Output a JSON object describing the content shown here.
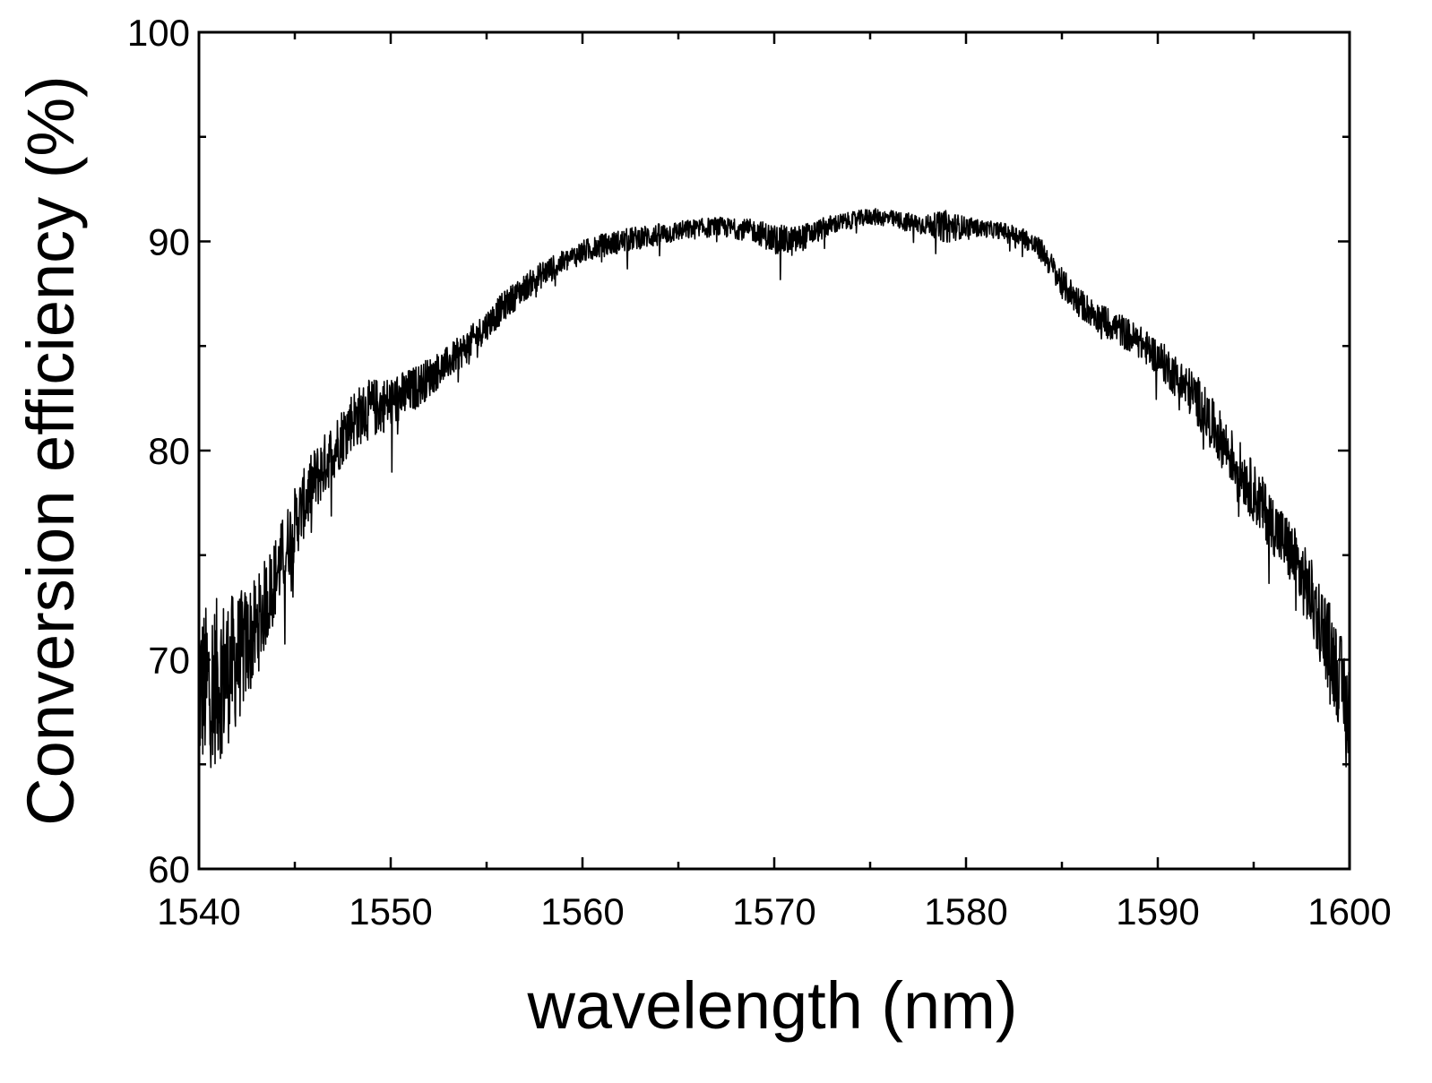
{
  "chart_data": {
    "type": "line",
    "title": "",
    "xlabel": "wavelength (nm)",
    "ylabel": "Conversion efficiency (%)",
    "xlim": [
      1540,
      1600
    ],
    "ylim": [
      60,
      100
    ],
    "xticks": [
      1540,
      1550,
      1560,
      1570,
      1580,
      1590,
      1600
    ],
    "xtick_labels": [
      "1540",
      "1550",
      "1560",
      "1570",
      "1580",
      "1590",
      "1600"
    ],
    "yticks": [
      60,
      70,
      80,
      90,
      100
    ],
    "ytick_labels": [
      "60",
      "70",
      "80",
      "90",
      "100"
    ],
    "y_minor_ticks": [
      65,
      75,
      85,
      95
    ],
    "x_minor_ticks": [
      1545,
      1555,
      1565,
      1575,
      1585,
      1595
    ],
    "grid": false,
    "legend": "none",
    "series": [
      {
        "name": "Conversion efficiency",
        "color": "#000000",
        "noise_note": "trace is a noisy measurement; envelope below is the smoothed mean",
        "x": [
          1540,
          1541,
          1542,
          1543,
          1544,
          1545,
          1546,
          1547,
          1548,
          1549,
          1550,
          1551,
          1552,
          1553,
          1554,
          1555,
          1556,
          1557,
          1558,
          1559,
          1560,
          1561,
          1562,
          1563,
          1564,
          1565,
          1566,
          1567,
          1568,
          1569,
          1570,
          1571,
          1572,
          1573,
          1574,
          1575,
          1576,
          1577,
          1578,
          1579,
          1580,
          1581,
          1582,
          1583,
          1584,
          1585,
          1586,
          1587,
          1588,
          1589,
          1590,
          1591,
          1592,
          1593,
          1594,
          1595,
          1596,
          1597,
          1598,
          1599,
          1600
        ],
        "values": [
          68.5,
          69.0,
          70.0,
          71.5,
          74.0,
          76.5,
          78.5,
          80.0,
          81.5,
          82.0,
          82.3,
          82.8,
          83.5,
          84.2,
          85.0,
          86.0,
          87.0,
          87.8,
          88.5,
          89.0,
          89.5,
          89.8,
          90.0,
          90.2,
          90.3,
          90.5,
          90.6,
          90.7,
          90.6,
          90.5,
          90.1,
          90.0,
          90.4,
          90.8,
          91.0,
          91.2,
          91.1,
          90.9,
          90.8,
          90.7,
          90.7,
          90.6,
          90.5,
          90.2,
          89.5,
          88.0,
          87.0,
          86.3,
          85.8,
          85.2,
          84.5,
          83.5,
          82.5,
          81.0,
          79.5,
          78.0,
          76.5,
          75.0,
          73.0,
          70.5,
          67.5
        ],
        "noise_amplitude": [
          5.0,
          5.0,
          4.0,
          3.0,
          2.5,
          2.2,
          2.0,
          1.8,
          1.8,
          1.8,
          1.6,
          1.4,
          1.2,
          1.0,
          1.0,
          0.9,
          0.9,
          0.8,
          0.8,
          0.7,
          0.7,
          0.7,
          0.7,
          0.7,
          0.7,
          0.6,
          0.6,
          0.6,
          0.6,
          0.7,
          0.9,
          0.9,
          0.7,
          0.6,
          0.5,
          0.5,
          0.5,
          0.6,
          0.6,
          1.0,
          0.6,
          0.5,
          0.5,
          0.6,
          0.7,
          0.9,
          0.9,
          0.9,
          1.0,
          1.0,
          1.1,
          1.3,
          1.5,
          1.6,
          1.7,
          1.8,
          1.8,
          2.0,
          2.3,
          2.8,
          3.0
        ]
      }
    ]
  }
}
